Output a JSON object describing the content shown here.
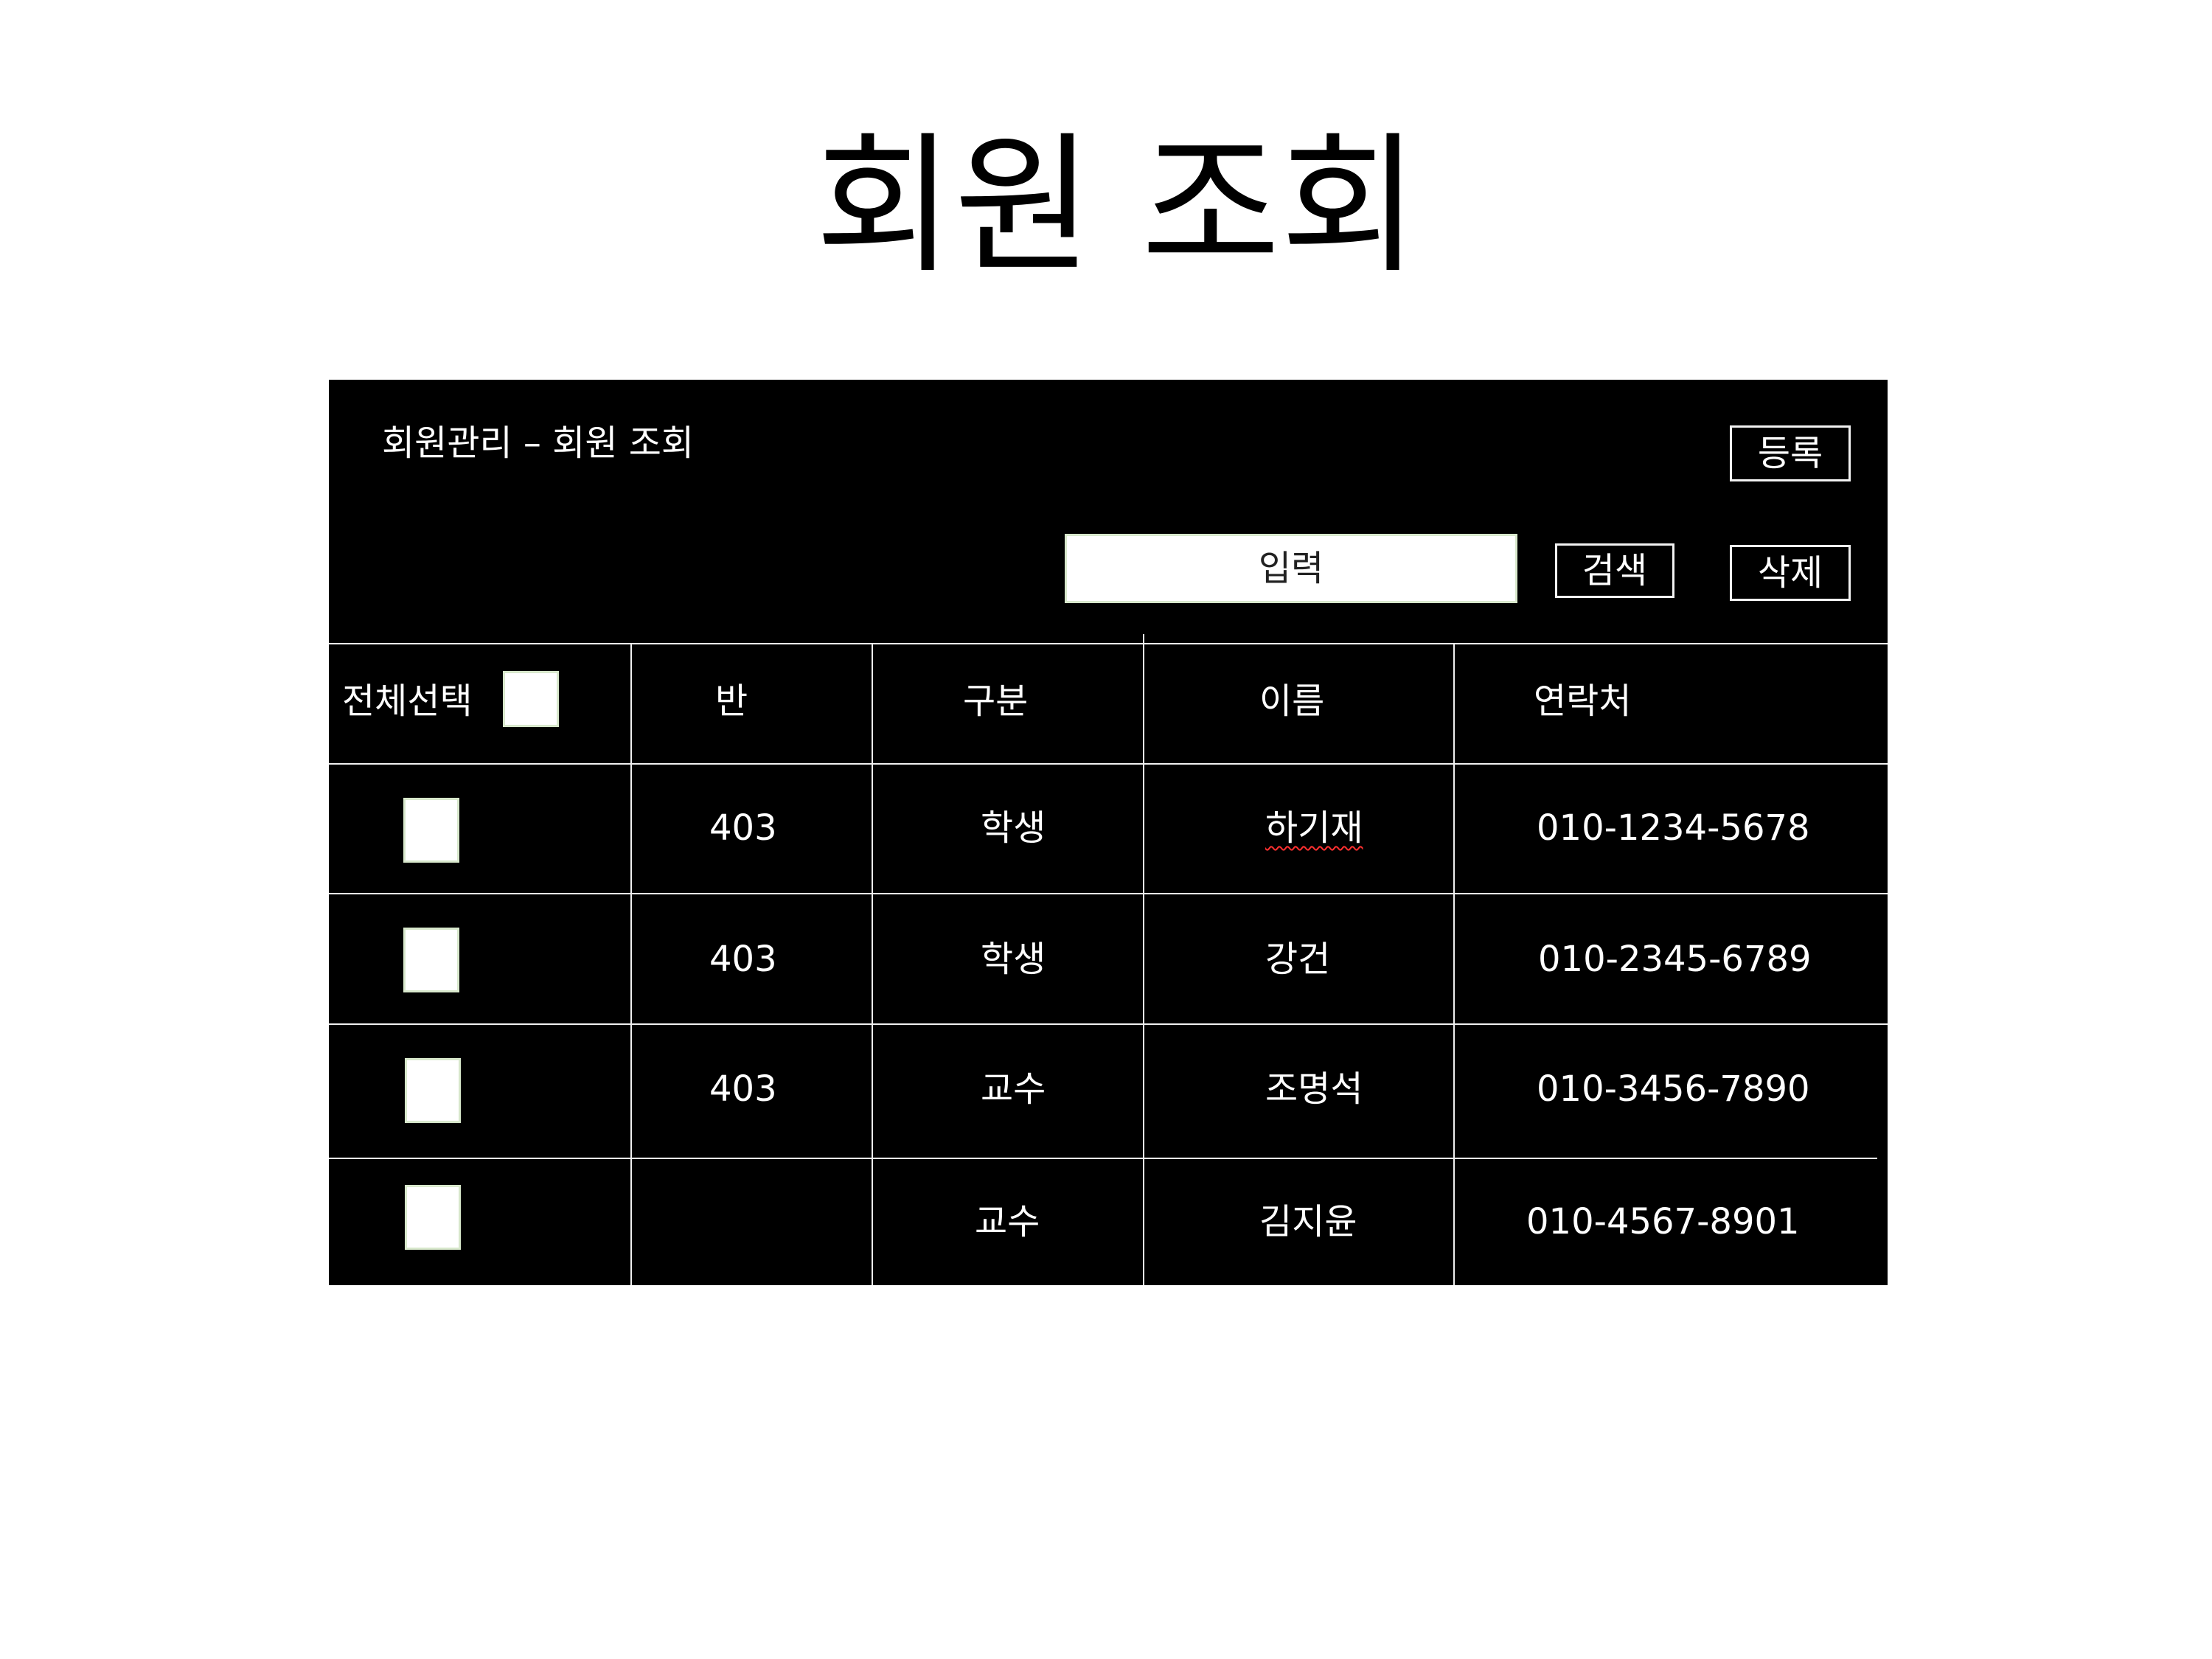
{
  "slide_title": "회원 조회",
  "panel": {
    "title": "회원관리 – 회원 조회",
    "register_label": "등록",
    "search_placeholder": "입력",
    "search_label": "검색",
    "delete_label": "삭제"
  },
  "table": {
    "select_all_label": "전체선택",
    "columns": [
      "반",
      "구분",
      "이름",
      "연락처"
    ],
    "rows": [
      {
        "class": "403",
        "type": "학생",
        "name": "하기재",
        "phone": "010-1234-5678"
      },
      {
        "class": "403",
        "type": "학생",
        "name": "강건",
        "phone": "010-2345-6789"
      },
      {
        "class": "403",
        "type": "교수",
        "name": "조명석",
        "phone": "010-3456-7890"
      },
      {
        "class": "",
        "type": "교수",
        "name": "김지윤",
        "phone": "010-4567-8901"
      }
    ]
  }
}
